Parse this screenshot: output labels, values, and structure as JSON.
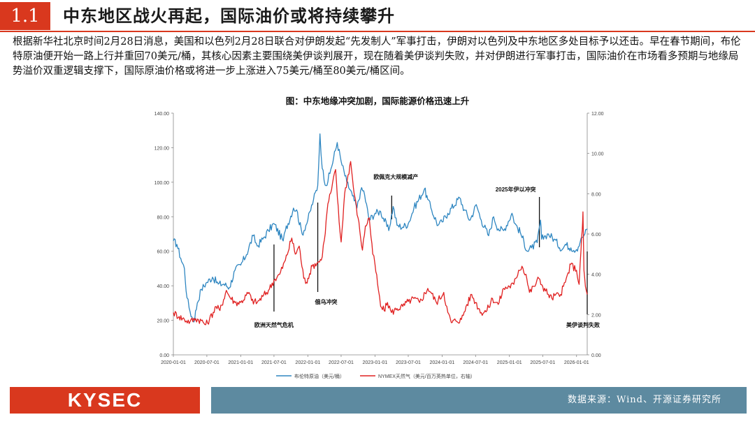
{
  "header": {
    "section_number": "1.1",
    "title": "中东地区战火再起，国际油价或将持续攀升"
  },
  "body_text": "根据新华社北京时间2月28日消息，美国和以色列2月28日联合对伊朗发起“先发制人”军事打击，伊朗对以色列及中东地区多处目标予以还击。早在春节期间，布伦特原油便开始一路上行并重回70美元/桶，其核心因素主要围绕美伊谈判展开，现在随着美伊谈判失败，并对伊朗进行军事打击，国际油价在市场看多预期与地缘局势溢价双重逻辑支撑下，国际原油价格或将进一步上涨进入75美元/桶至80美元/桶区间。",
  "chart_title": "图：中东地缘冲突加剧，国际能源价格迅速上升",
  "chart_data": {
    "type": "line",
    "title": "图：中东地缘冲突加剧，国际能源价格迅速上升",
    "x_ticks": [
      "2020-01-01",
      "2020-07-01",
      "2021-01-01",
      "2021-07-01",
      "2022-01-01",
      "2022-07-01",
      "2023-01-01",
      "2023-07-01",
      "2024-01-01",
      "2024-07-01",
      "2025-01-01",
      "2025-07-01",
      "2026-01-01"
    ],
    "x_range": [
      "2020-01-01",
      "2026-02-28"
    ],
    "y_left": {
      "range": [
        0,
        140
      ],
      "ticks": [
        "0.00",
        "20.00",
        "40.00",
        "60.00",
        "80.00",
        "100.00",
        "120.00",
        "140.00"
      ]
    },
    "y_right": {
      "range": [
        0,
        12
      ],
      "ticks": [
        "0.00",
        "2.00",
        "4.00",
        "6.00",
        "8.00",
        "10.00",
        "12.00"
      ]
    },
    "grid": false,
    "legend_position": "bottom",
    "series": [
      {
        "name": "布伦特原油（美元/桶）",
        "axis": "left",
        "color": "#2e86c1",
        "points": [
          [
            "2020-01-01",
            66
          ],
          [
            "2020-01-20",
            64
          ],
          [
            "2020-02-10",
            56
          ],
          [
            "2020-03-01",
            50
          ],
          [
            "2020-03-15",
            33
          ],
          [
            "2020-04-01",
            25
          ],
          [
            "2020-04-21",
            19
          ],
          [
            "2020-05-10",
            30
          ],
          [
            "2020-06-01",
            38
          ],
          [
            "2020-07-01",
            42
          ],
          [
            "2020-08-01",
            45
          ],
          [
            "2020-09-01",
            41
          ],
          [
            "2020-10-01",
            41
          ],
          [
            "2020-11-01",
            39
          ],
          [
            "2020-12-01",
            49
          ],
          [
            "2021-01-01",
            52
          ],
          [
            "2021-02-01",
            58
          ],
          [
            "2021-03-10",
            69
          ],
          [
            "2021-04-01",
            63
          ],
          [
            "2021-05-01",
            67
          ],
          [
            "2021-06-01",
            72
          ],
          [
            "2021-07-01",
            76
          ],
          [
            "2021-08-20",
            66
          ],
          [
            "2021-09-01",
            72
          ],
          [
            "2021-10-15",
            85
          ],
          [
            "2021-11-01",
            84
          ],
          [
            "2021-12-01",
            70
          ],
          [
            "2022-01-01",
            78
          ],
          [
            "2022-02-01",
            90
          ],
          [
            "2022-02-24",
            98
          ],
          [
            "2022-03-08",
            128
          ],
          [
            "2022-03-20",
            108
          ],
          [
            "2022-04-10",
            98
          ],
          [
            "2022-05-01",
            105
          ],
          [
            "2022-06-10",
            123
          ],
          [
            "2022-07-01",
            112
          ],
          [
            "2022-08-01",
            100
          ],
          [
            "2022-09-01",
            92
          ],
          [
            "2022-09-25",
            85
          ],
          [
            "2022-10-15",
            95
          ],
          [
            "2022-11-01",
            95
          ],
          [
            "2022-12-01",
            78
          ],
          [
            "2023-01-01",
            82
          ],
          [
            "2023-02-01",
            83
          ],
          [
            "2023-03-17",
            72
          ],
          [
            "2023-04-10",
            86
          ],
          [
            "2023-05-01",
            75
          ],
          [
            "2023-06-01",
            74
          ],
          [
            "2023-07-01",
            76
          ],
          [
            "2023-08-01",
            85
          ],
          [
            "2023-09-27",
            96
          ],
          [
            "2023-10-15",
            90
          ],
          [
            "2023-11-01",
            85
          ],
          [
            "2023-12-10",
            75
          ],
          [
            "2024-01-01",
            77
          ],
          [
            "2024-02-01",
            82
          ],
          [
            "2024-04-05",
            91
          ],
          [
            "2024-05-01",
            84
          ],
          [
            "2024-06-01",
            78
          ],
          [
            "2024-07-05",
            87
          ],
          [
            "2024-08-01",
            78
          ],
          [
            "2024-09-10",
            69
          ],
          [
            "2024-10-07",
            80
          ],
          [
            "2024-11-01",
            73
          ],
          [
            "2024-12-01",
            72
          ],
          [
            "2025-01-15",
            82
          ],
          [
            "2025-02-01",
            76
          ],
          [
            "2025-03-01",
            71
          ],
          [
            "2025-04-09",
            60
          ],
          [
            "2025-05-01",
            62
          ],
          [
            "2025-06-01",
            65
          ],
          [
            "2025-06-19",
            78
          ],
          [
            "2025-06-25",
            67
          ],
          [
            "2025-07-15",
            69
          ],
          [
            "2025-08-01",
            70
          ],
          [
            "2025-09-01",
            67
          ],
          [
            "2025-10-15",
            61
          ],
          [
            "2025-11-01",
            64
          ],
          [
            "2025-12-01",
            62
          ],
          [
            "2026-01-01",
            61
          ],
          [
            "2026-01-20",
            65
          ],
          [
            "2026-02-01",
            68
          ],
          [
            "2026-02-15",
            70
          ],
          [
            "2026-02-28",
            73
          ]
        ]
      },
      {
        "name": "NYMEX天然气（美元/百万英热单位，右轴）",
        "axis": "right",
        "color": "#e02020",
        "points": [
          [
            "2020-01-01",
            2.1
          ],
          [
            "2020-02-01",
            1.9
          ],
          [
            "2020-03-01",
            1.75
          ],
          [
            "2020-04-01",
            1.65
          ],
          [
            "2020-05-01",
            1.8
          ],
          [
            "2020-06-01",
            1.7
          ],
          [
            "2020-06-25",
            1.5
          ],
          [
            "2020-07-15",
            1.75
          ],
          [
            "2020-08-20",
            2.4
          ],
          [
            "2020-09-10",
            2.2
          ],
          [
            "2020-10-15",
            3.2
          ],
          [
            "2020-11-01",
            2.9
          ],
          [
            "2020-12-01",
            2.6
          ],
          [
            "2021-01-01",
            2.6
          ],
          [
            "2021-02-15",
            3.1
          ],
          [
            "2021-03-01",
            2.7
          ],
          [
            "2021-04-01",
            2.6
          ],
          [
            "2021-05-01",
            2.9
          ],
          [
            "2021-06-01",
            3.2
          ],
          [
            "2021-07-01",
            3.7
          ],
          [
            "2021-08-01",
            4.0
          ],
          [
            "2021-09-01",
            4.7
          ],
          [
            "2021-10-06",
            5.8
          ],
          [
            "2021-10-25",
            5.0
          ],
          [
            "2021-11-15",
            5.4
          ],
          [
            "2021-12-10",
            3.8
          ],
          [
            "2021-12-25",
            3.6
          ],
          [
            "2022-01-01",
            3.8
          ],
          [
            "2022-01-25",
            4.4
          ],
          [
            "2022-02-24",
            4.6
          ],
          [
            "2022-03-15",
            4.7
          ],
          [
            "2022-04-01",
            5.7
          ],
          [
            "2022-04-20",
            7.5
          ],
          [
            "2022-05-10",
            8.2
          ],
          [
            "2022-06-01",
            9.2
          ],
          [
            "2022-06-20",
            6.6
          ],
          [
            "2022-07-01",
            5.6
          ],
          [
            "2022-07-20",
            8.0
          ],
          [
            "2022-08-22",
            9.6
          ],
          [
            "2022-09-10",
            8.0
          ],
          [
            "2022-10-01",
            6.8
          ],
          [
            "2022-10-25",
            5.2
          ],
          [
            "2022-11-10",
            6.4
          ],
          [
            "2022-12-01",
            6.8
          ],
          [
            "2022-12-20",
            5.0
          ],
          [
            "2023-01-01",
            4.5
          ],
          [
            "2023-01-20",
            3.2
          ],
          [
            "2023-02-01",
            2.4
          ],
          [
            "2023-02-20",
            2.2
          ],
          [
            "2023-03-10",
            2.6
          ],
          [
            "2023-04-01",
            2.1
          ],
          [
            "2023-05-01",
            2.3
          ],
          [
            "2023-06-01",
            2.4
          ],
          [
            "2023-07-01",
            2.65
          ],
          [
            "2023-08-01",
            2.8
          ],
          [
            "2023-09-01",
            2.6
          ],
          [
            "2023-10-15",
            3.3
          ],
          [
            "2023-11-01",
            3.1
          ],
          [
            "2023-12-01",
            2.6
          ],
          [
            "2024-01-10",
            3.1
          ],
          [
            "2024-02-01",
            2.1
          ],
          [
            "2024-02-20",
            1.6
          ],
          [
            "2024-03-15",
            1.7
          ],
          [
            "2024-04-15",
            1.75
          ],
          [
            "2024-05-15",
            2.5
          ],
          [
            "2024-06-10",
            3.0
          ],
          [
            "2024-07-01",
            2.6
          ],
          [
            "2024-08-01",
            2.1
          ],
          [
            "2024-09-01",
            2.2
          ],
          [
            "2024-10-01",
            2.8
          ],
          [
            "2024-11-01",
            2.5
          ],
          [
            "2024-12-01",
            3.3
          ],
          [
            "2025-01-01",
            3.4
          ],
          [
            "2025-01-25",
            3.5
          ],
          [
            "2025-02-20",
            4.2
          ],
          [
            "2025-03-10",
            4.4
          ],
          [
            "2025-04-01",
            4.0
          ],
          [
            "2025-04-20",
            3.1
          ],
          [
            "2025-05-15",
            3.4
          ],
          [
            "2025-06-10",
            3.8
          ],
          [
            "2025-07-01",
            3.4
          ],
          [
            "2025-08-01",
            3.0
          ],
          [
            "2025-08-20",
            2.8
          ],
          [
            "2025-09-10",
            3.0
          ],
          [
            "2025-10-01",
            2.9
          ],
          [
            "2025-11-01",
            3.6
          ],
          [
            "2025-12-01",
            4.5
          ],
          [
            "2026-01-01",
            4.2
          ],
          [
            "2026-01-15",
            3.5
          ],
          [
            "2026-01-25",
            5.2
          ],
          [
            "2026-02-01",
            6.2
          ],
          [
            "2026-02-05",
            7.1
          ],
          [
            "2026-02-10",
            4.2
          ],
          [
            "2026-02-18",
            3.4
          ],
          [
            "2026-02-28",
            3.0
          ]
        ]
      }
    ],
    "annotations": [
      {
        "label": "欧洲天然气危机",
        "date": "2021-07-01"
      },
      {
        "label": "俄乌冲突",
        "date": "2022-02-24"
      },
      {
        "label": "欧佩克大规模减产",
        "date": "2023-04-02"
      },
      {
        "label": "2025年伊以冲突",
        "date": "2025-06-13"
      },
      {
        "label": "美伊谈判失败",
        "date": "2026-02-28"
      }
    ]
  },
  "footer": {
    "logo": "KYSEC",
    "source": "数据来源：Wind、开源证券研究所"
  }
}
